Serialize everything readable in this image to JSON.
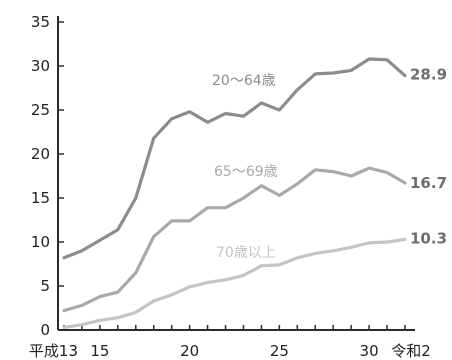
{
  "chart_data": {
    "type": "line",
    "title": "",
    "xlabel": "",
    "ylabel": "",
    "x": [
      13,
      14,
      15,
      16,
      17,
      18,
      19,
      20,
      21,
      22,
      23,
      24,
      25,
      26,
      27,
      28,
      29,
      30,
      31,
      32
    ],
    "x_tick_values": [
      13,
      15,
      20,
      25,
      30,
      32
    ],
    "x_tick_labels": [
      "平成13",
      "15",
      "20",
      "25",
      "30",
      "令和2"
    ],
    "y_ticks": [
      0,
      5,
      10,
      15,
      20,
      25,
      30,
      35
    ],
    "ylim": [
      0,
      35
    ],
    "grid": false,
    "series": [
      {
        "name": "20～64歳",
        "color": "#8c8c8c",
        "values": [
          8.2,
          9.0,
          10.2,
          11.4,
          15.0,
          21.8,
          24.0,
          24.8,
          23.6,
          24.6,
          24.3,
          25.8,
          25.0,
          27.3,
          29.1,
          29.2,
          29.5,
          30.8,
          30.7,
          28.9
        ],
        "end_label": "28.9"
      },
      {
        "name": "65～69歳",
        "color": "#a9a9a9",
        "values": [
          2.2,
          2.8,
          3.8,
          4.3,
          6.5,
          10.6,
          12.4,
          12.4,
          13.9,
          13.9,
          15.0,
          16.4,
          15.3,
          16.6,
          18.2,
          18.0,
          17.5,
          18.4,
          17.9,
          16.7
        ],
        "end_label": "16.7"
      },
      {
        "name": "70歳以上",
        "color": "#c4c4c4",
        "values": [
          0.3,
          0.6,
          1.1,
          1.4,
          2.0,
          3.3,
          4.0,
          4.9,
          5.4,
          5.7,
          6.2,
          7.3,
          7.4,
          8.2,
          8.7,
          9.0,
          9.4,
          9.9,
          10.0,
          10.3
        ],
        "end_label": "10.3"
      }
    ]
  }
}
